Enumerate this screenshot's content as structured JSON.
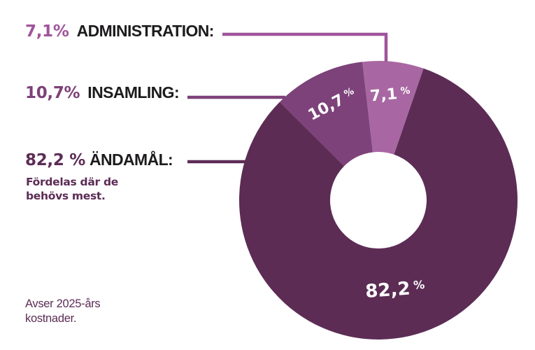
{
  "chart_data": {
    "type": "pie",
    "subtype": "donut",
    "unit": "%",
    "start_angle_deg": -6.6,
    "segments": [
      {
        "id": "administration",
        "name": "ADMINISTRATION",
        "value": 7.1,
        "display": "7,1",
        "color": "#a867a2",
        "accent": "#a0549b"
      },
      {
        "id": "andamal",
        "name": "ÄNDAMÅL",
        "value": 82.2,
        "display": "82,2",
        "color": "#5c2c55",
        "accent": "#5c2c55"
      },
      {
        "id": "insamling",
        "name": "INSAMLING",
        "value": 10.7,
        "display": "10,7",
        "color": "#7d4279",
        "accent": "#7d4279"
      }
    ]
  },
  "legend": {
    "items": [
      {
        "id": "administration",
        "pct": "7,1%",
        "label": "ADMINISTRATION:",
        "pct_color": "#a0549b",
        "label_color": "#1d1b1d"
      },
      {
        "id": "insamling",
        "pct": "10,7%",
        "label": "INSAMLING:",
        "pct_color": "#7d4279",
        "label_color": "#1d1b1d"
      },
      {
        "id": "andamal",
        "pct": "82,2 %",
        "label": "ÄNDAMÅL:",
        "pct_color": "#5c2c55",
        "label_color": "#1d1b1d",
        "sub": "Fördelas där de\nbehövs mest.",
        "sub_color": "#5c2c55"
      }
    ]
  },
  "footnote": {
    "text": "Avser 2025-års\nkostnader.",
    "color": "#5c2c55"
  }
}
